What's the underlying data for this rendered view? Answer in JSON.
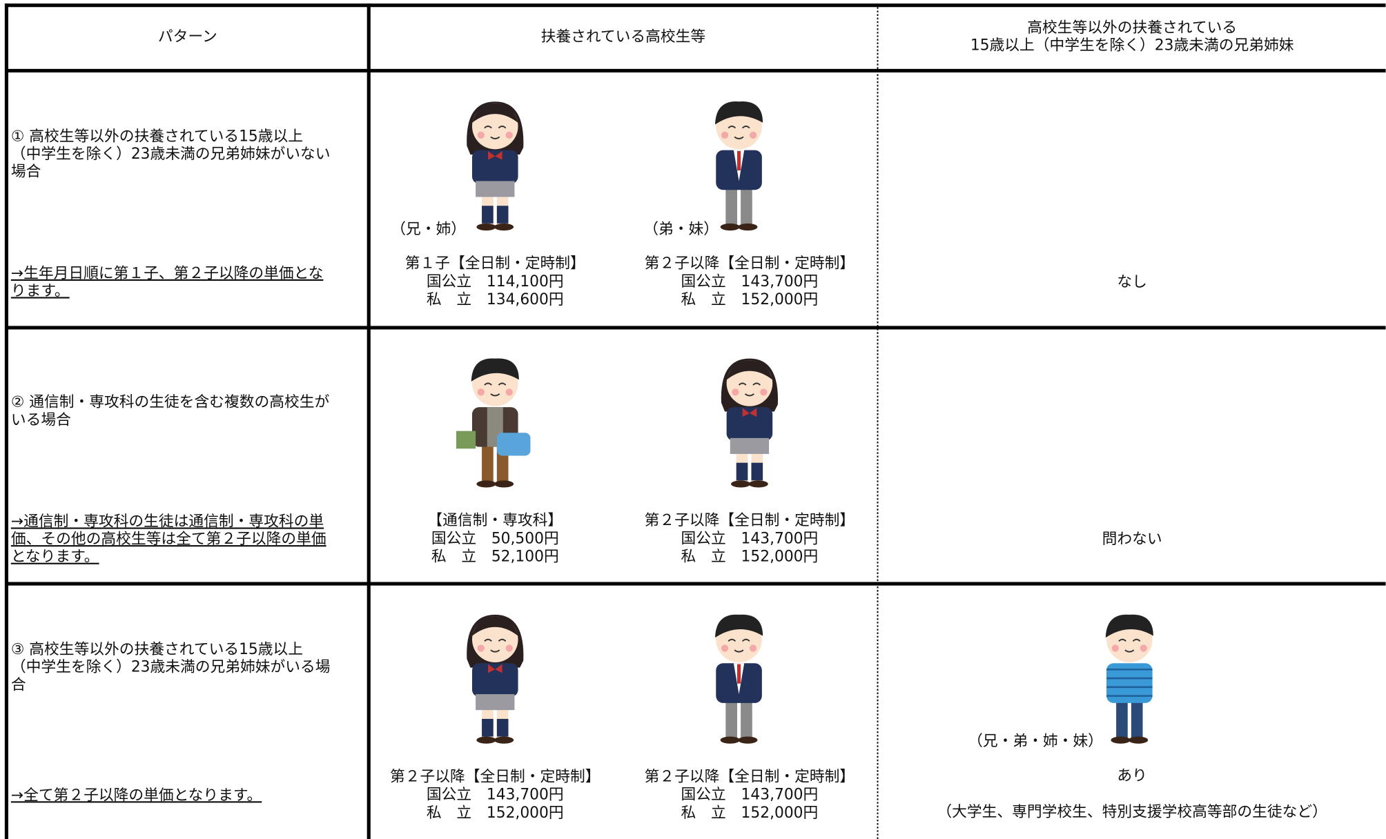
{
  "header": {
    "columns": [
      [
        "パターン"
      ],
      [
        "扶養されている高校生等"
      ],
      [
        "高校生等以外の扶養されている",
        "15歳以上（中学生を除く）23歳未満の兄弟姉妹"
      ]
    ]
  },
  "rows": [
    {
      "pattern": [
        "① 高校生等以外の扶養されている15歳以上",
        "（中学生を除く）23歳未満の兄弟姉妹がいない",
        "場合"
      ],
      "note": [
        "→生年月日順に第１子、第２子以降の単価とな",
        "ります。"
      ],
      "students": [
        {
          "caption": "（兄・姉）",
          "lines": [
            "第１子【全日制・定時制】",
            "国公立　114,100円",
            "私　立　134,600円"
          ]
        },
        {
          "caption": "（弟・妹）",
          "lines": [
            "第２子以降【全日制・定時制】",
            "国公立　143,700円",
            "私　立　152,000円"
          ]
        }
      ],
      "sibling": {
        "lines": [
          "なし"
        ]
      }
    },
    {
      "pattern": [
        "② 通信制・専攻科の生徒を含む複数の高校生が",
        "いる場合"
      ],
      "note": [
        "→通信制・専攻科の生徒は通信制・専攻科の単",
        "価、その他の高校生等は全て第２子以降の単価",
        "となります。"
      ],
      "students": [
        {
          "lines": [
            "【通信制・専攻科】",
            "国公立　50,500円",
            "私　立　52,100円"
          ]
        },
        {
          "lines": [
            "第２子以降【全日制・定時制】",
            "国公立　143,700円",
            "私　立　152,000円"
          ]
        }
      ],
      "sibling": {
        "lines": [
          "問わない"
        ]
      }
    },
    {
      "pattern": [
        "③ 高校生等以外の扶養されている15歳以上",
        "（中学生を除く）23歳未満の兄弟姉妹がいる場",
        "合"
      ],
      "note": [
        "→全て第２子以降の単価となります。"
      ],
      "students": [
        {
          "lines": [
            "第２子以降【全日制・定時制】",
            "国公立　143,700円",
            "私　立　152,000円"
          ]
        },
        {
          "lines": [
            "第２子以降【全日制・定時制】",
            "国公立　143,700円",
            "私　立　152,000円"
          ]
        }
      ],
      "sibling": {
        "caption": "（兄・弟・姉・妹）",
        "lines": [
          "あり",
          "（大学生、専門学校生、特別支援学校高等部の生徒など）"
        ]
      }
    }
  ]
}
